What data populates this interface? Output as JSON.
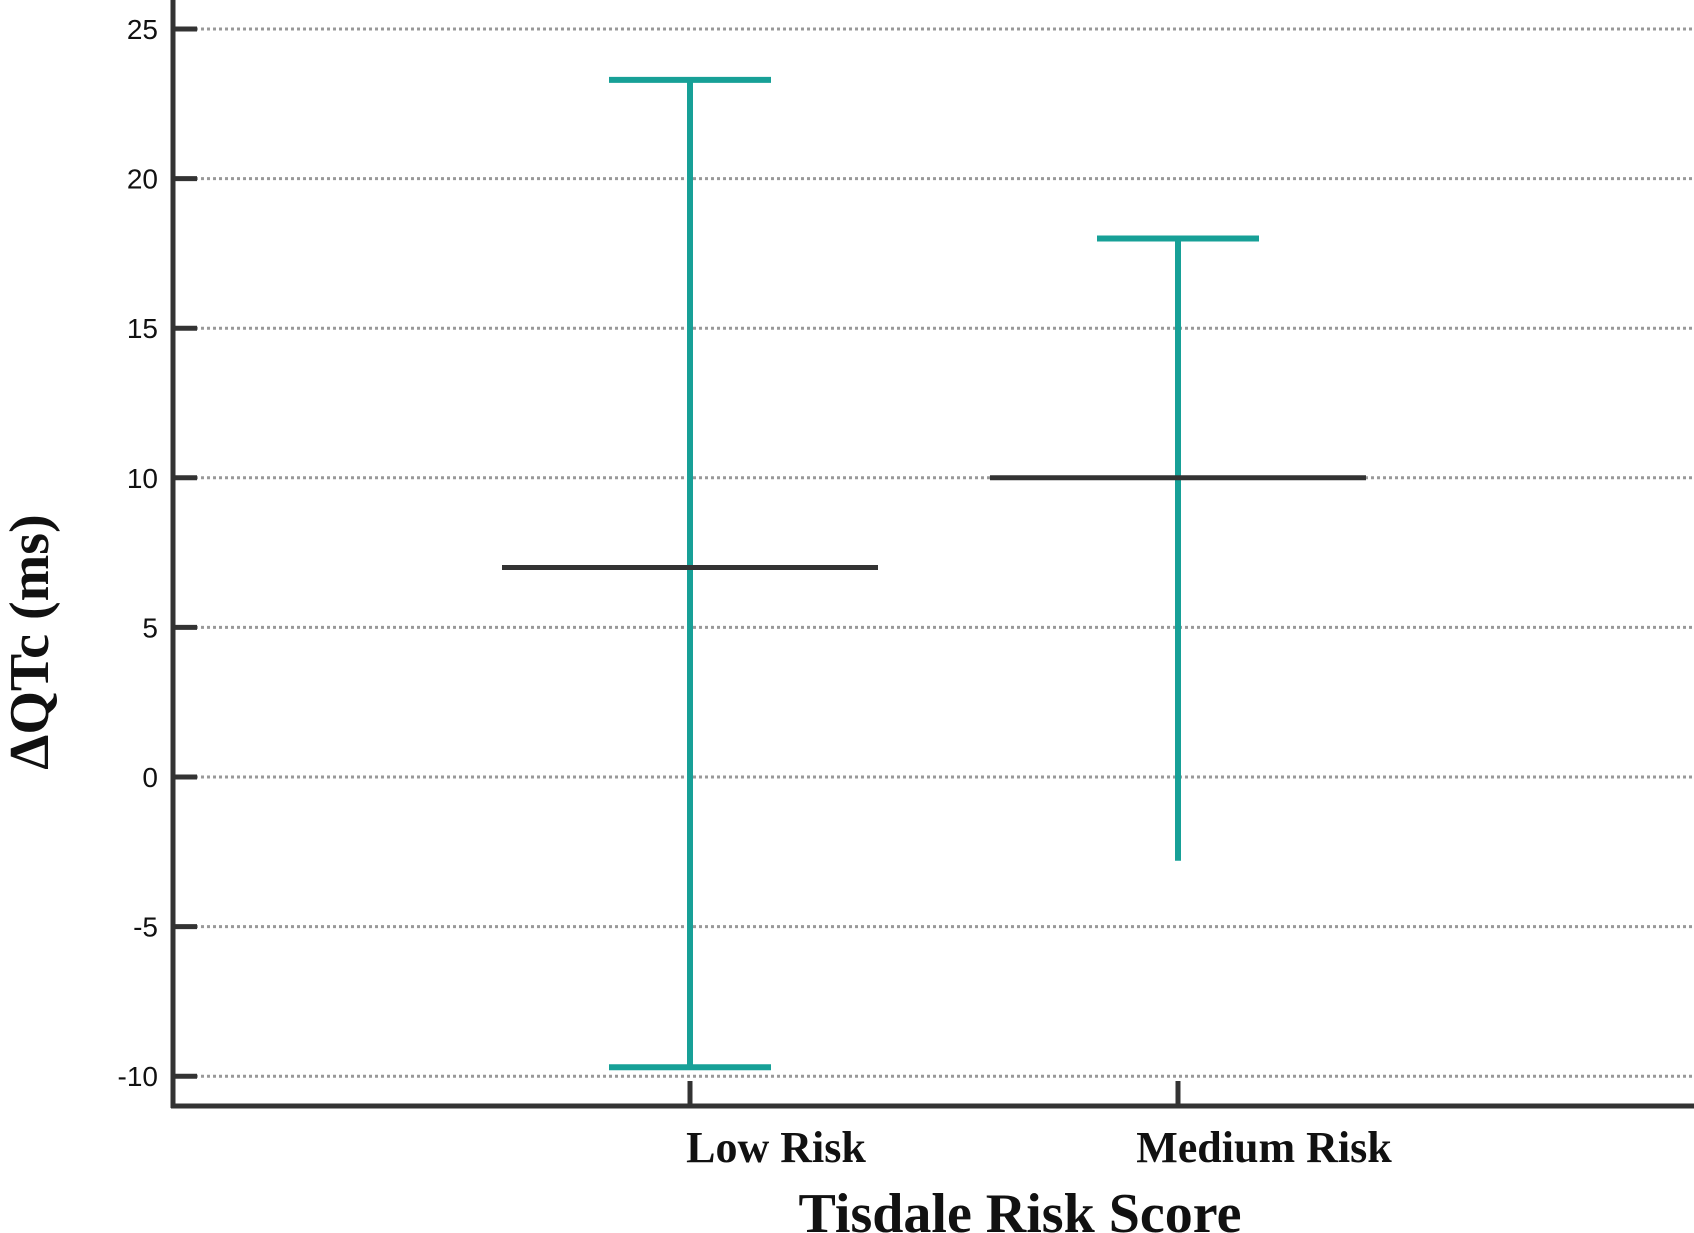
{
  "chart_data": {
    "type": "errorbar",
    "xlabel": "Tisdale Risk Score",
    "ylabel": "ΔQTc (ms)",
    "ylim": [
      -11,
      26
    ],
    "yticks": [
      25,
      20,
      15,
      10,
      5,
      0,
      -5,
      -10
    ],
    "grid": true,
    "categories": [
      "Low Risk",
      "Medium Risk"
    ],
    "points": [
      {
        "category": "Low Risk",
        "mean": 7,
        "lower": -9.7,
        "upper": 23.3
      },
      {
        "category": "Medium Risk",
        "mean": 10,
        "lower": -2.8,
        "upper": 18
      }
    ],
    "colors": {
      "error_bar": "#17a097",
      "mean_line": "#333333",
      "axis": "#333333",
      "grid": "#999999"
    }
  }
}
